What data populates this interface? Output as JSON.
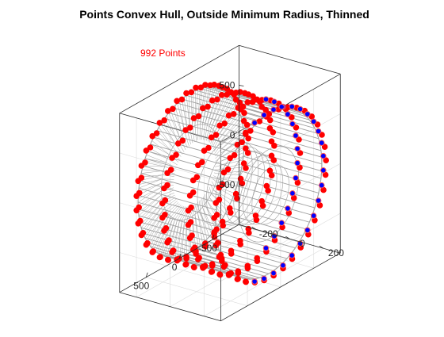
{
  "chart_data": {
    "type": "scatter",
    "projection": "3d",
    "title": "Points Convex Hull, Outside Minimum Radius, Thinned",
    "annotation": "992 Points",
    "point_count": 992,
    "xlim": [
      -300,
      300
    ],
    "ylim": [
      -900,
      900
    ],
    "zlim": [
      -900,
      900
    ],
    "x_ticks": [
      {
        "value": -200,
        "label": "-200"
      },
      {
        "value": 0,
        "label": "0"
      },
      {
        "value": 200,
        "label": "200"
      }
    ],
    "y_ticks": [
      {
        "value": 500,
        "label": "500"
      },
      {
        "value": 0,
        "label": "0"
      },
      {
        "value": -500,
        "label": "-500"
      }
    ],
    "z_ticks": [
      {
        "value": 500,
        "label": "500"
      },
      {
        "value": 0,
        "label": "0"
      },
      {
        "value": -500,
        "label": "-500"
      }
    ],
    "grid": true,
    "colors": {
      "hull": "#a0a0a0",
      "points_outer": "#ff0000",
      "points_inner": "#0000ff",
      "annotation": "#ff0000"
    },
    "series": [
      {
        "role": "convex-hull-mesh",
        "outer_radius": 800,
        "inner_radius": 450,
        "half_width": 230
      },
      {
        "role": "points",
        "marker": "circle",
        "lobes": 36,
        "rows_across_width": 4
      }
    ]
  }
}
